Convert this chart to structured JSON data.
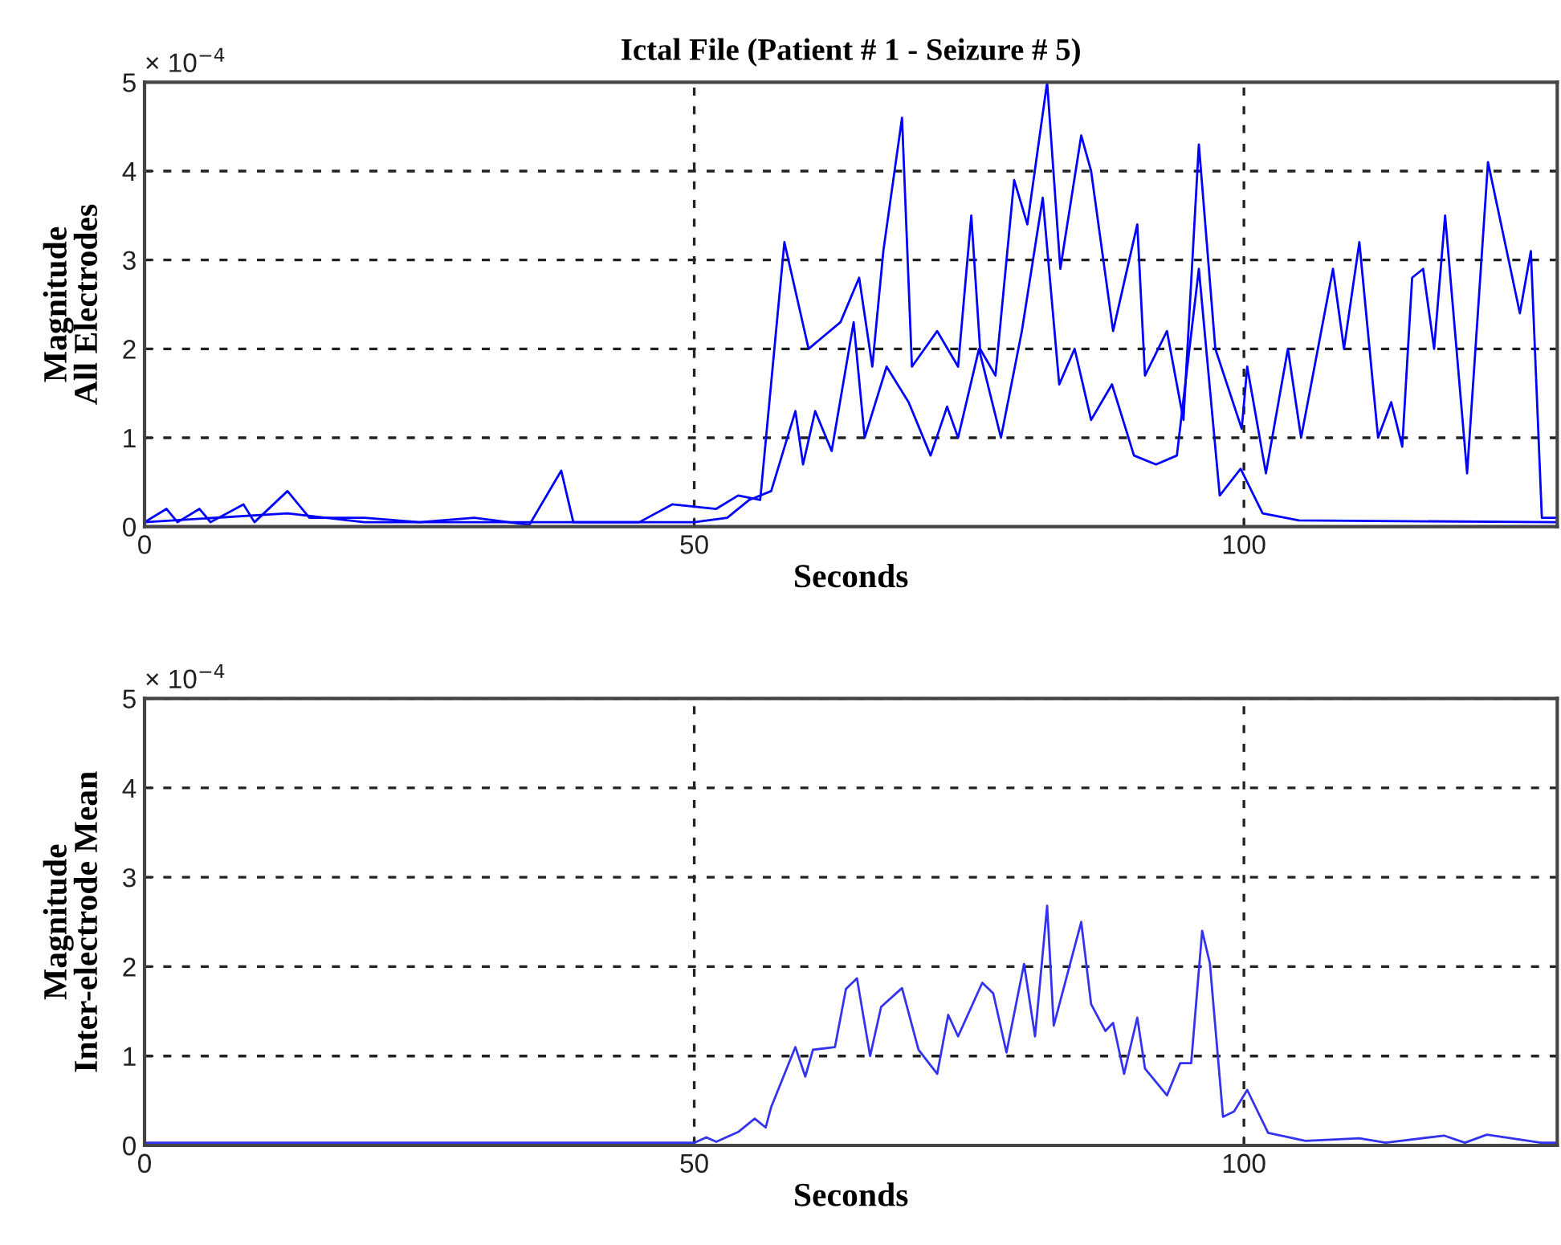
{
  "chart_data": [
    {
      "type": "line",
      "title": "Ictal File (Patient # 1 - Seizure # 5)",
      "xlabel": "Seconds",
      "ylabel": "Magnitude\nAll Electrodes",
      "annotations": [
        "× 10$^{−4}$"
      ],
      "xlim": [
        0,
        128.5
      ],
      "ylim": [
        0,
        5
      ],
      "xticks": [
        0,
        50,
        100
      ],
      "yticks": [
        0,
        1,
        2,
        3,
        4,
        5
      ],
      "grid": true,
      "series": [
        {
          "color": "#0000ff",
          "x": [
            0,
            2,
            3,
            5,
            6,
            9,
            10,
            13,
            15,
            20,
            25,
            30,
            35,
            37.9,
            39,
            45,
            48,
            52,
            54,
            56,
            58.2,
            60.4,
            63.3,
            65,
            66.2,
            67.2,
            68.9,
            69.8,
            72.1,
            74,
            75.2,
            76,
            77.4,
            79.1,
            80.3,
            82.1,
            83.3,
            85.2,
            86.1,
            88.1,
            90.3,
            91,
            93,
            94.5,
            95.9,
            97.4,
            99.8,
            100.3,
            102,
            104,
            105.2,
            108.1,
            109.1,
            110.5,
            112.2,
            113.4,
            114.4,
            115.3,
            116.3,
            117.3,
            118.3,
            120.3,
            122.2,
            125.1,
            126.1,
            127.1,
            128.5
          ],
          "values": [
            0.05,
            0.2,
            0.05,
            0.2,
            0.05,
            0.25,
            0.05,
            0.4,
            0.1,
            0.1,
            0.05,
            0.1,
            0.02,
            0.63,
            0.05,
            0.05,
            0.25,
            0.2,
            0.35,
            0.3,
            3.2,
            2.0,
            2.3,
            2.8,
            1.8,
            3.1,
            4.6,
            1.8,
            2.2,
            1.8,
            3.5,
            2.0,
            1.7,
            3.9,
            3.4,
            5.0,
            2.9,
            4.4,
            4.0,
            2.2,
            3.4,
            1.7,
            2.2,
            1.2,
            4.3,
            2.0,
            1.1,
            1.8,
            0.6,
            2.0,
            1.0,
            2.9,
            2.0,
            3.2,
            1.0,
            1.4,
            0.9,
            2.8,
            2.9,
            2.0,
            3.5,
            0.6,
            4.1,
            2.4,
            3.1,
            0.1,
            0.1
          ]
        },
        {
          "color": "#0000ff",
          "x": [
            0,
            13,
            20,
            50,
            53,
            55,
            57,
            59.2,
            59.9,
            61,
            62.5,
            64.5,
            65.5,
            67.5,
            69.5,
            71.5,
            73,
            74,
            75.9,
            77.9,
            79.8,
            81.7,
            83.2,
            84.6,
            86.1,
            88,
            90,
            92,
            93.9,
            95.9,
            97.8,
            99.7,
            101.7,
            105,
            128.5
          ],
          "values": [
            0.05,
            0.15,
            0.05,
            0.05,
            0.1,
            0.3,
            0.4,
            1.3,
            0.7,
            1.3,
            0.85,
            2.3,
            1.0,
            1.8,
            1.4,
            0.8,
            1.35,
            1.0,
            2.0,
            1.0,
            2.2,
            3.7,
            1.6,
            2.0,
            1.2,
            1.6,
            0.8,
            0.7,
            0.8,
            2.9,
            0.35,
            0.65,
            0.15,
            0.07,
            0.05
          ]
        }
      ]
    },
    {
      "type": "line",
      "xlabel": "Seconds",
      "ylabel": "Magnitude\nInter-electrode Mean",
      "annotations": [
        "× 10$^{−4}$"
      ],
      "xlim": [
        0,
        128.5
      ],
      "ylim": [
        0,
        5
      ],
      "xticks": [
        0,
        50,
        100
      ],
      "yticks": [
        0,
        1,
        2,
        3,
        4,
        5
      ],
      "grid": true,
      "series": [
        {
          "color": "#3333ee",
          "x": [
            0,
            50,
            51.1,
            52,
            54,
            55.5,
            56.5,
            57,
            59.2,
            60.1,
            60.8,
            62.8,
            63.8,
            64.8,
            66,
            67,
            68.9,
            70.4,
            72.1,
            73.1,
            74,
            76.2,
            77.2,
            78.4,
            80,
            81,
            82.1,
            82.7,
            85.2,
            86.1,
            87.4,
            88.1,
            89.1,
            90.3,
            91,
            93,
            94.2,
            95.2,
            96.2,
            96.9,
            98.1,
            99.1,
            100.3,
            102.2,
            105.6,
            110.5,
            112.9,
            118.2,
            120.1,
            122.1,
            127,
            128.5
          ],
          "values": [
            0.03,
            0.03,
            0.09,
            0.04,
            0.15,
            0.3,
            0.2,
            0.43,
            1.1,
            0.77,
            1.07,
            1.1,
            1.75,
            1.87,
            1.0,
            1.55,
            1.76,
            1.07,
            0.8,
            1.46,
            1.22,
            1.82,
            1.7,
            1.04,
            2.03,
            1.22,
            2.68,
            1.34,
            2.5,
            1.58,
            1.28,
            1.37,
            0.8,
            1.43,
            0.86,
            0.56,
            0.92,
            0.92,
            2.4,
            2.04,
            0.32,
            0.38,
            0.62,
            0.14,
            0.05,
            0.08,
            0.03,
            0.11,
            0.03,
            0.12,
            0.03,
            0.03
          ]
        }
      ]
    }
  ]
}
